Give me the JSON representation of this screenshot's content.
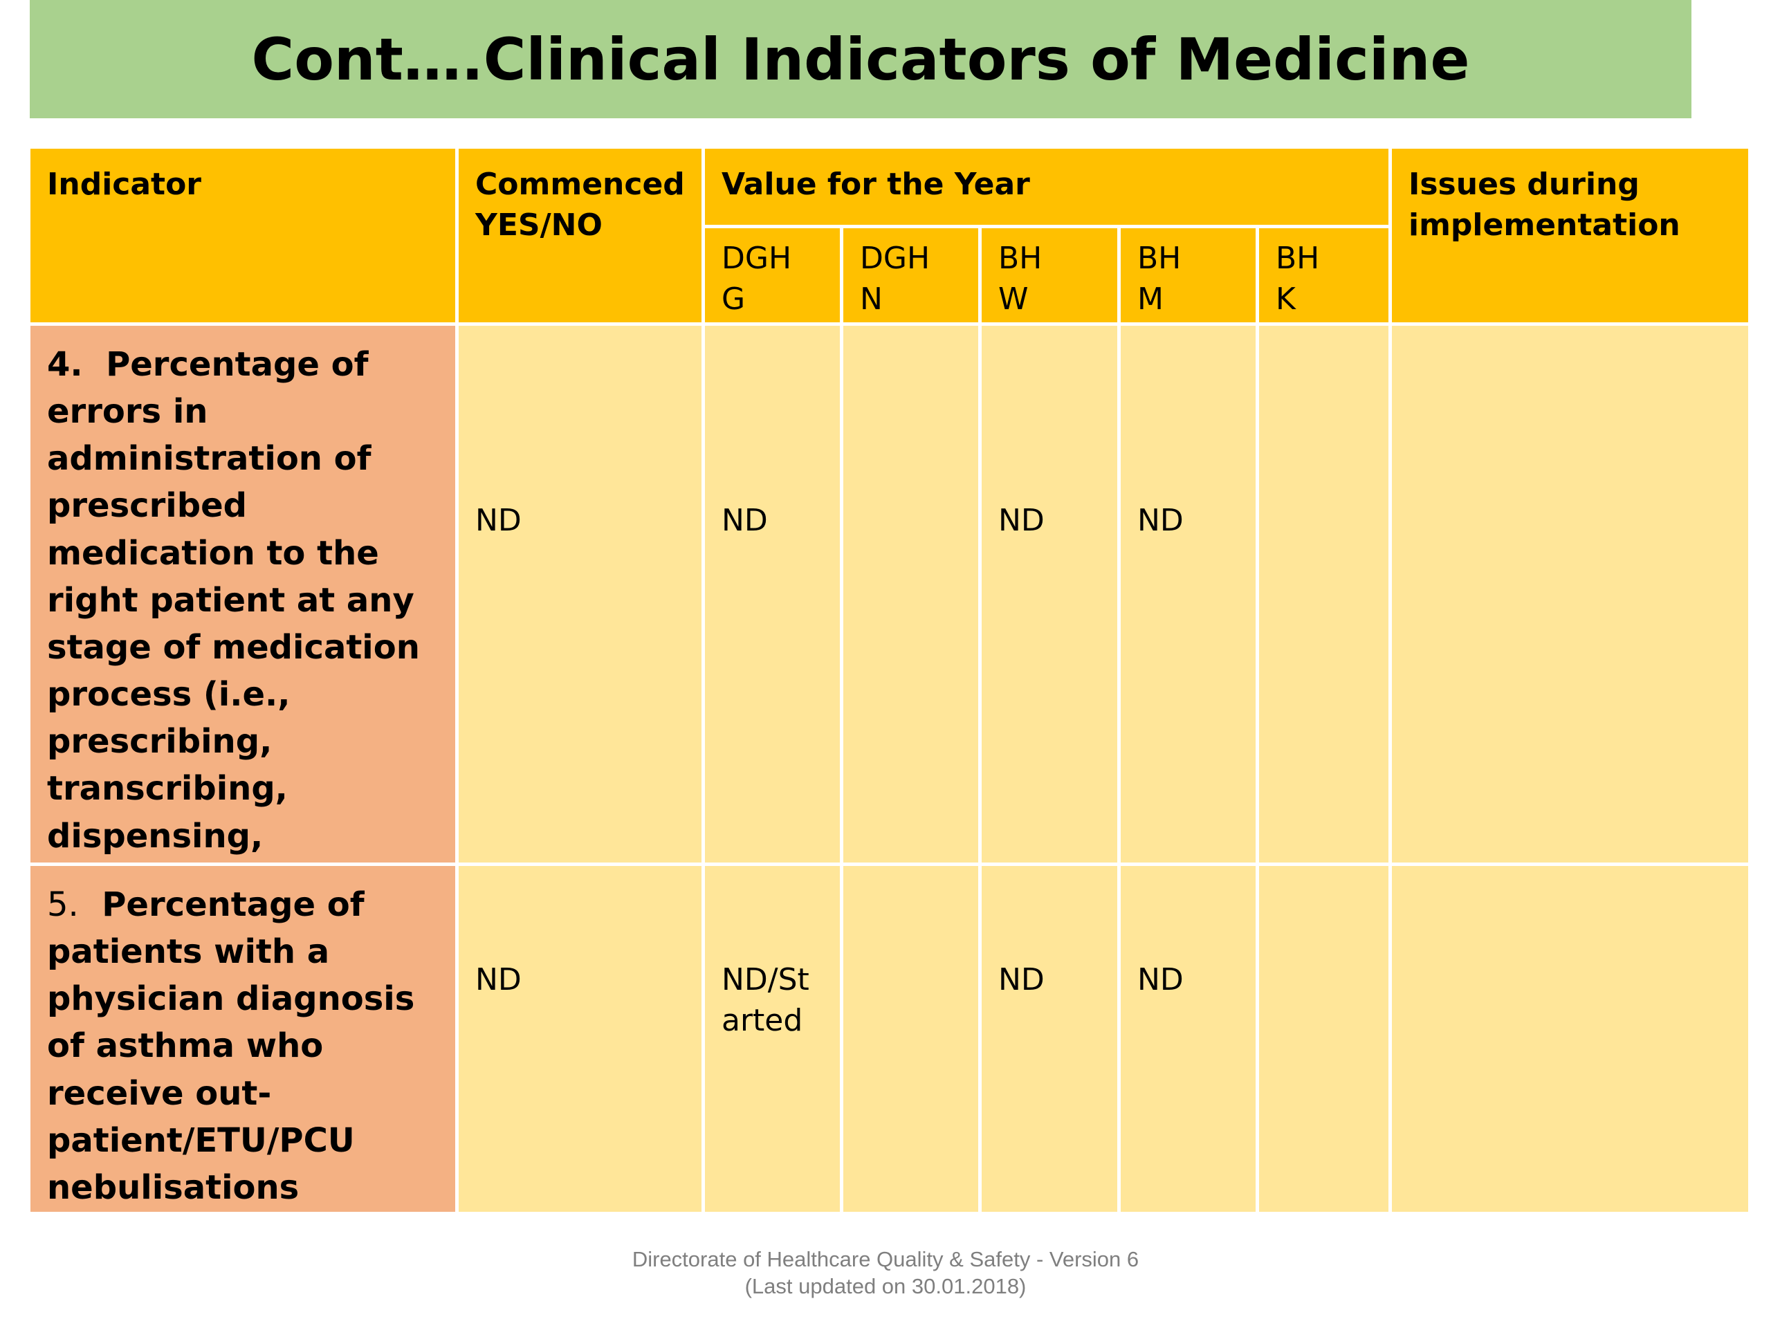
{
  "title": "Cont….Clinical Indicators of Medicine",
  "table": {
    "header": {
      "indicator": "Indicator",
      "commenced": "Commenced YES/NO",
      "value_for_year": "Value for the Year",
      "sub_columns": [
        "DGH\nG",
        "DGH\nN",
        "BH\nW",
        "BH\nM",
        "BH\nK"
      ],
      "issues": "Issues during implementation"
    },
    "rows": [
      {
        "number": "4.",
        "indicator": "Percentage of errors in administration of prescribed medication to the right patient at any stage of medication process (i.e., prescribing, transcribing, dispensing, administration and monitoring)",
        "commenced": "ND",
        "values": [
          "ND",
          null,
          "ND",
          "ND",
          null
        ]
      },
      {
        "number": "5.",
        "indicator": "Percentage of patients with a physician diagnosis of asthma who receive out-patient/ETU/PCU nebulisations",
        "commenced": "ND",
        "values": [
          "ND/Started",
          null,
          "ND",
          "ND",
          null
        ]
      }
    ]
  },
  "footer": {
    "line1": "Directorate of Healthcare Quality & Safety - Version 6",
    "line2": "(Last updated on 30.01.2018)"
  }
}
